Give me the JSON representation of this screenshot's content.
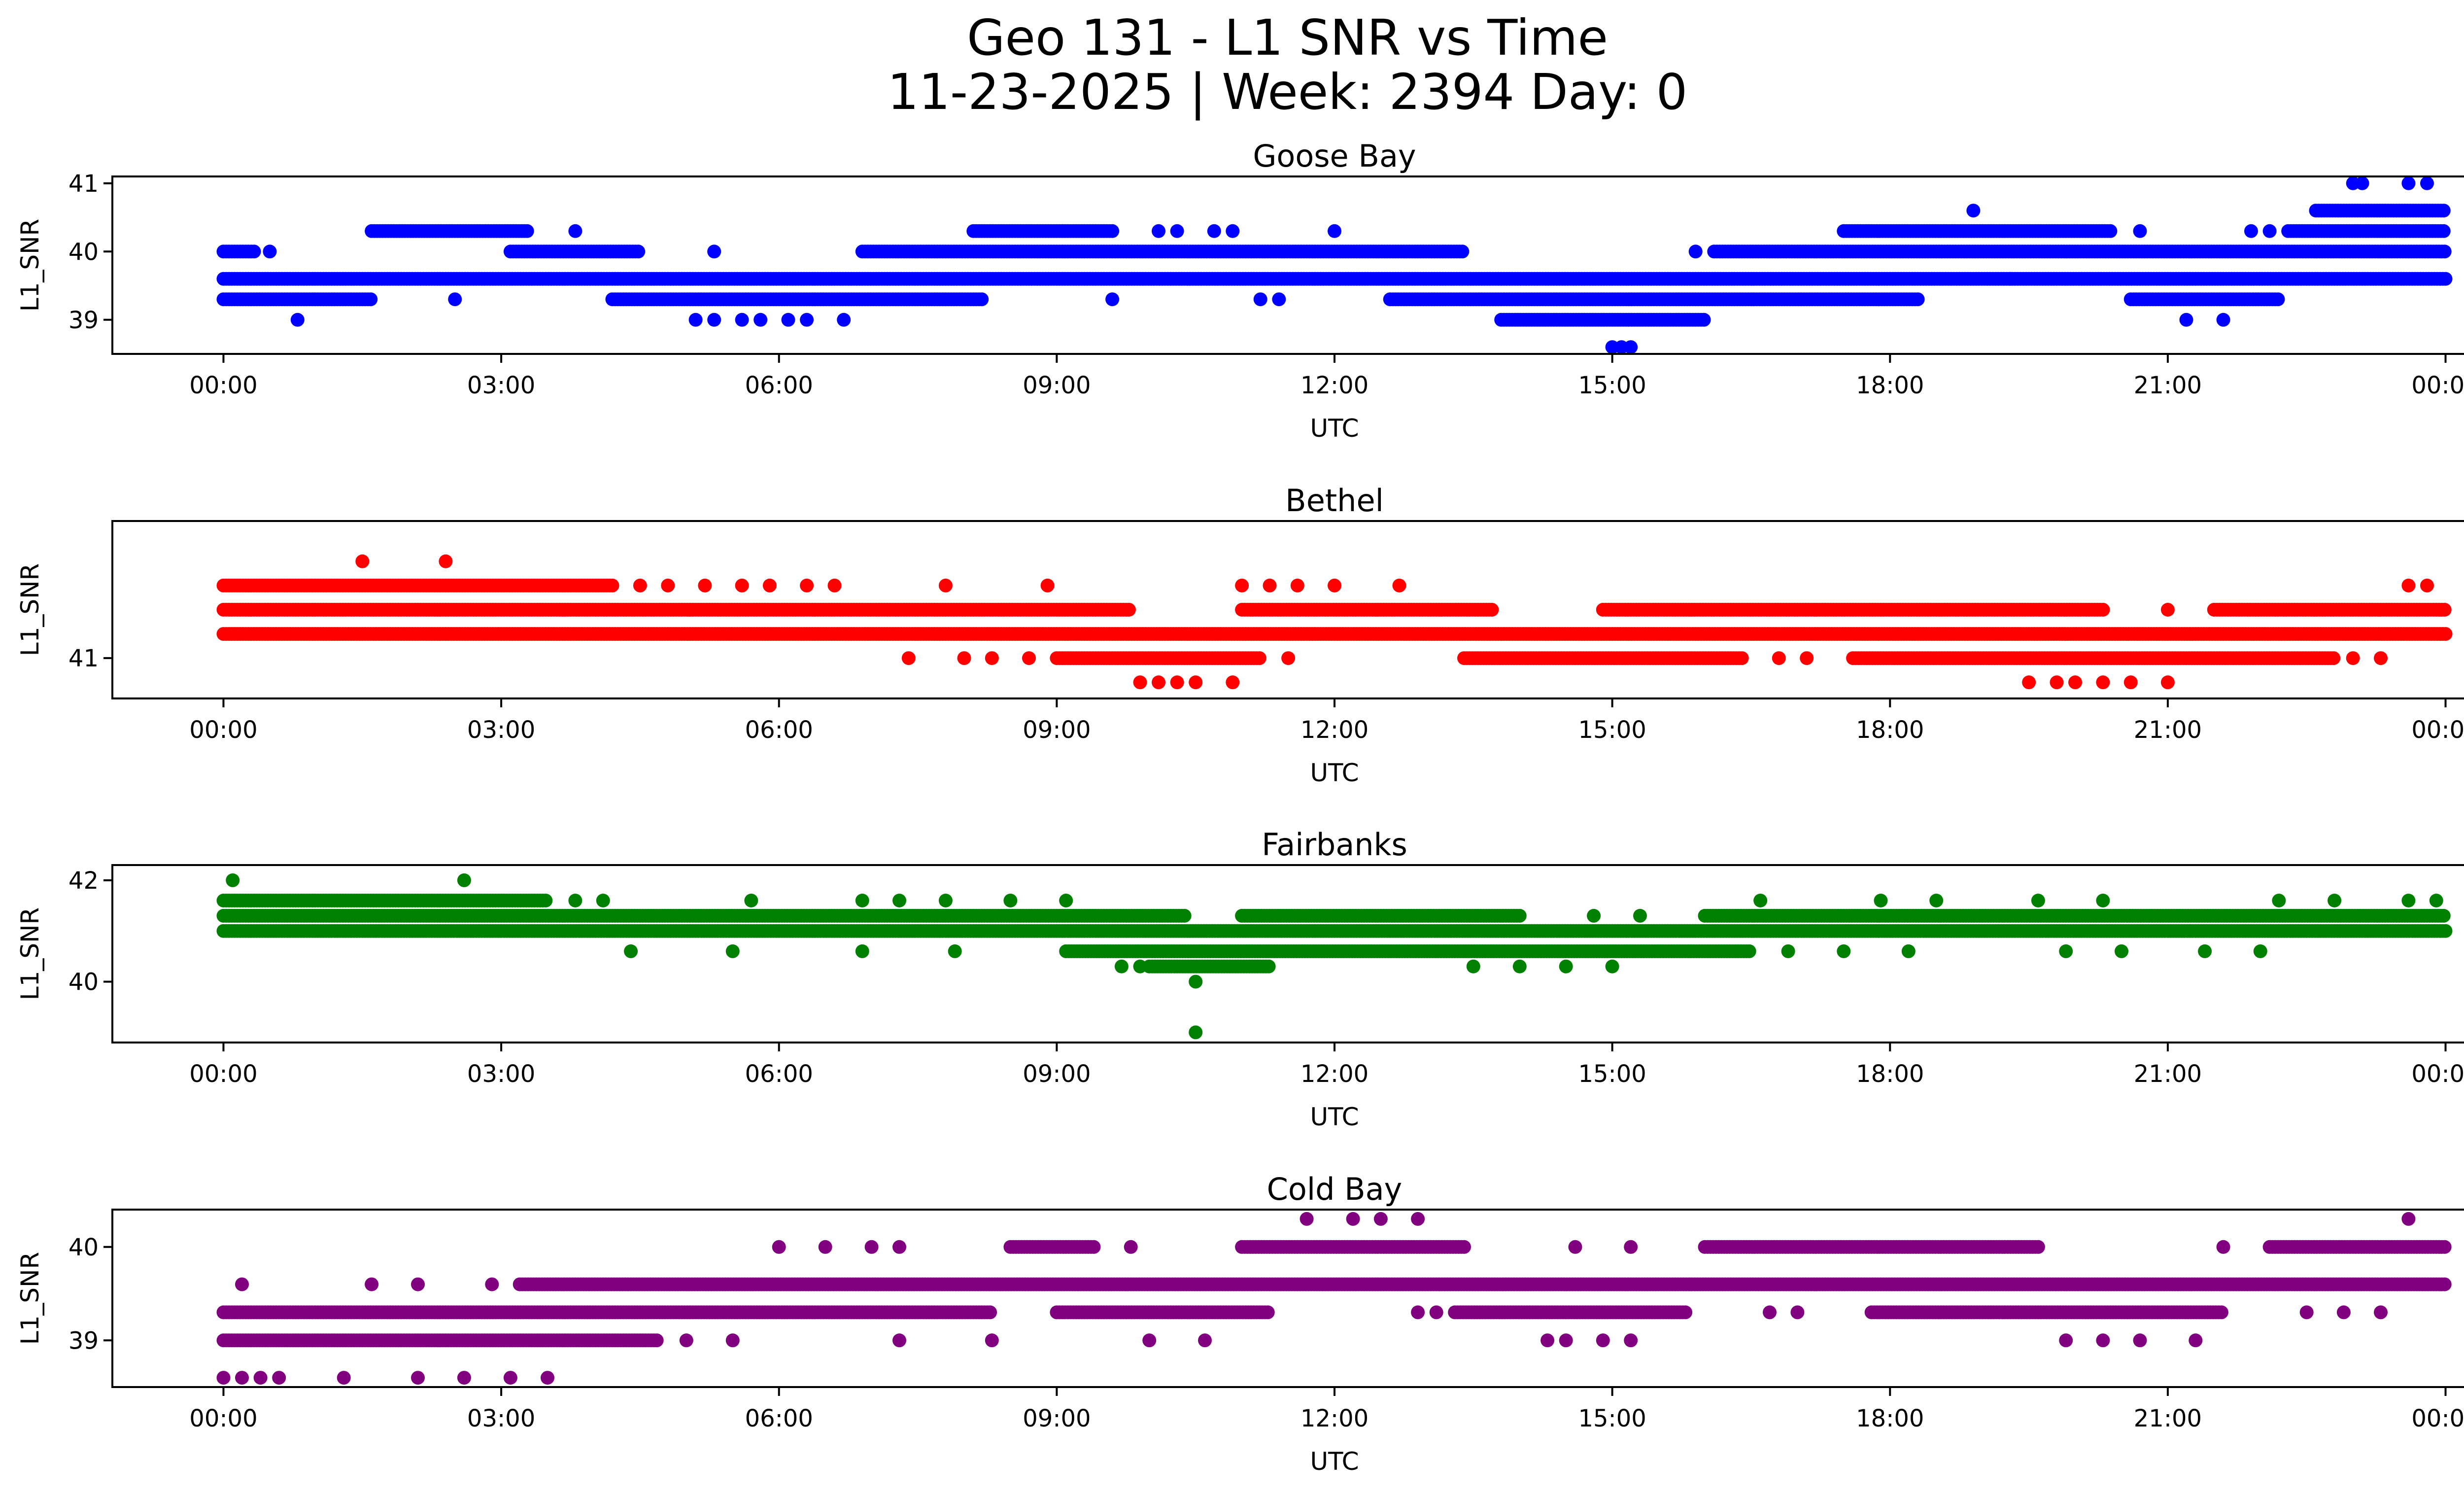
{
  "figure": {
    "title_line1": "Geo 131 - L1 SNR vs Time",
    "title_line2": "11-23-2025 | Week: 2394 Day: 0"
  },
  "chart_data": [
    {
      "type": "scatter",
      "title": "Goose Bay",
      "xlabel": "UTC",
      "ylabel": "L1_SNR",
      "color": "#0000ff",
      "xlim": [
        -1.2,
        25.2
      ],
      "ylim": [
        38.5,
        41.1
      ],
      "xticks": [
        0,
        3,
        6,
        9,
        12,
        15,
        18,
        21,
        24
      ],
      "xtick_labels": [
        "00:00",
        "03:00",
        "06:00",
        "09:00",
        "12:00",
        "15:00",
        "18:00",
        "21:00",
        "00:00"
      ],
      "yticks": [
        39,
        40,
        41
      ],
      "ytick_labels": [
        "39",
        "40",
        "41"
      ],
      "bands": [
        {
          "y": 39.6,
          "ranges": [
            [
              0.0,
              24.0
            ]
          ]
        },
        {
          "y": 39.3,
          "ranges": [
            [
              0.0,
              1.6
            ],
            [
              4.2,
              8.2
            ],
            [
              12.6,
              18.3
            ],
            [
              20.6,
              22.2
            ]
          ]
        },
        {
          "y": 40.0,
          "ranges": [
            [
              0.0,
              0.35
            ],
            [
              3.1,
              4.5
            ],
            [
              6.9,
              13.4
            ],
            [
              16.1,
              24.0
            ]
          ]
        },
        {
          "y": 39.0,
          "ranges": [
            [
              13.8,
              16.0
            ]
          ]
        },
        {
          "y": 40.3,
          "ranges": [
            [
              1.6,
              3.3
            ],
            [
              8.1,
              9.6
            ],
            [
              17.5,
              20.4
            ],
            [
              22.3,
              24.0
            ]
          ]
        },
        {
          "y": 40.6,
          "ranges": [
            [
              22.6,
              24.0
            ]
          ]
        }
      ],
      "points": [
        [
          0.8,
          39.0
        ],
        [
          0.5,
          40.0
        ],
        [
          2.5,
          39.3
        ],
        [
          3.8,
          40.3
        ],
        [
          5.3,
          40.0
        ],
        [
          5.1,
          39.0
        ],
        [
          5.3,
          39.0
        ],
        [
          5.6,
          39.0
        ],
        [
          5.8,
          39.0
        ],
        [
          6.1,
          39.0
        ],
        [
          6.3,
          39.0
        ],
        [
          6.7,
          39.0
        ],
        [
          9.6,
          39.3
        ],
        [
          10.1,
          40.3
        ],
        [
          10.3,
          40.3
        ],
        [
          10.7,
          40.3
        ],
        [
          10.9,
          40.3
        ],
        [
          11.2,
          39.3
        ],
        [
          11.4,
          39.3
        ],
        [
          12.0,
          40.3
        ],
        [
          15.9,
          40.0
        ],
        [
          15.0,
          38.6
        ],
        [
          15.1,
          38.6
        ],
        [
          15.2,
          38.6
        ],
        [
          18.9,
          40.6
        ],
        [
          19.3,
          39.6
        ],
        [
          20.7,
          40.3
        ],
        [
          21.2,
          39.0
        ],
        [
          21.9,
          40.3
        ],
        [
          22.1,
          40.3
        ],
        [
          21.6,
          39.0
        ],
        [
          23.0,
          41.0
        ],
        [
          23.1,
          41.0
        ],
        [
          23.6,
          41.0
        ],
        [
          23.8,
          41.0
        ]
      ]
    },
    {
      "type": "scatter",
      "title": "Bethel",
      "xlabel": "UTC",
      "ylabel": "L1_SNR",
      "color": "#ff0000",
      "xlim": [
        -1.2,
        25.2
      ],
      "ylim": [
        40.75,
        41.85
      ],
      "xticks": [
        0,
        3,
        6,
        9,
        12,
        15,
        18,
        21,
        24
      ],
      "xtick_labels": [
        "00:00",
        "03:00",
        "06:00",
        "09:00",
        "12:00",
        "15:00",
        "18:00",
        "21:00",
        "00:00"
      ],
      "yticks": [
        41
      ],
      "ytick_labels": [
        "41"
      ],
      "bands": [
        {
          "y": 41.3,
          "ranges": [
            [
              0.0,
              9.8
            ],
            [
              11.0,
              13.7
            ],
            [
              14.9,
              20.3
            ],
            [
              21.5,
              24.0
            ]
          ]
        },
        {
          "y": 41.15,
          "ranges": [
            [
              0.0,
              24.0
            ]
          ]
        },
        {
          "y": 41.45,
          "ranges": [
            [
              0.0,
              4.2
            ]
          ]
        },
        {
          "y": 41.0,
          "ranges": [
            [
              9.0,
              11.2
            ],
            [
              13.4,
              16.4
            ],
            [
              17.6,
              22.8
            ]
          ]
        }
      ],
      "points": [
        [
          1.5,
          41.6
        ],
        [
          2.4,
          41.6
        ],
        [
          4.5,
          41.45
        ],
        [
          4.8,
          41.45
        ],
        [
          5.2,
          41.45
        ],
        [
          5.6,
          41.45
        ],
        [
          5.9,
          41.45
        ],
        [
          6.3,
          41.45
        ],
        [
          6.6,
          41.45
        ],
        [
          7.8,
          41.45
        ],
        [
          8.9,
          41.45
        ],
        [
          7.4,
          41.0
        ],
        [
          8.0,
          41.0
        ],
        [
          8.3,
          41.0
        ],
        [
          8.7,
          41.0
        ],
        [
          11.0,
          41.45
        ],
        [
          11.3,
          41.45
        ],
        [
          11.6,
          41.45
        ],
        [
          12.0,
          41.45
        ],
        [
          12.7,
          41.45
        ],
        [
          11.5,
          41.0
        ],
        [
          9.9,
          40.85
        ],
        [
          10.1,
          40.85
        ],
        [
          10.3,
          40.85
        ],
        [
          10.5,
          40.85
        ],
        [
          10.9,
          40.85
        ],
        [
          16.8,
          41.0
        ],
        [
          17.1,
          41.0
        ],
        [
          19.5,
          40.85
        ],
        [
          19.8,
          40.85
        ],
        [
          20.0,
          40.85
        ],
        [
          20.3,
          40.85
        ],
        [
          20.6,
          40.85
        ],
        [
          21.0,
          40.85
        ],
        [
          21.0,
          41.3
        ],
        [
          23.6,
          41.45
        ],
        [
          23.8,
          41.45
        ],
        [
          23.0,
          41.0
        ],
        [
          23.3,
          41.0
        ]
      ]
    },
    {
      "type": "scatter",
      "title": "Fairbanks",
      "xlabel": "UTC",
      "ylabel": "L1_SNR",
      "color": "#008000",
      "xlim": [
        -1.2,
        25.2
      ],
      "ylim": [
        38.8,
        42.3
      ],
      "xticks": [
        0,
        3,
        6,
        9,
        12,
        15,
        18,
        21,
        24
      ],
      "xtick_labels": [
        "00:00",
        "03:00",
        "06:00",
        "09:00",
        "12:00",
        "15:00",
        "18:00",
        "21:00",
        "00:00"
      ],
      "yticks": [
        40,
        42
      ],
      "ytick_labels": [
        "40",
        "42"
      ],
      "bands": [
        {
          "y": 41.3,
          "ranges": [
            [
              0.0,
              10.4
            ],
            [
              11.0,
              14.0
            ],
            [
              16.0,
              24.0
            ]
          ]
        },
        {
          "y": 41.0,
          "ranges": [
            [
              0.0,
              24.0
            ]
          ]
        },
        {
          "y": 41.6,
          "ranges": [
            [
              0.0,
              3.5
            ]
          ]
        },
        {
          "y": 40.6,
          "ranges": [
            [
              9.1,
              16.5
            ]
          ]
        },
        {
          "y": 40.3,
          "ranges": [
            [
              10.0,
              11.3
            ]
          ]
        }
      ],
      "points": [
        [
          0.1,
          42.0
        ],
        [
          2.6,
          42.0
        ],
        [
          10.5,
          40.0
        ],
        [
          10.5,
          39.0
        ],
        [
          4.4,
          40.6
        ],
        [
          5.5,
          40.6
        ],
        [
          6.9,
          40.6
        ],
        [
          7.9,
          40.6
        ],
        [
          3.8,
          41.6
        ],
        [
          4.1,
          41.6
        ],
        [
          5.7,
          41.6
        ],
        [
          6.9,
          41.6
        ],
        [
          7.3,
          41.6
        ],
        [
          7.8,
          41.6
        ],
        [
          8.5,
          41.6
        ],
        [
          9.1,
          41.6
        ],
        [
          9.7,
          40.3
        ],
        [
          9.9,
          40.3
        ],
        [
          13.5,
          40.3
        ],
        [
          14.0,
          40.3
        ],
        [
          14.5,
          40.3
        ],
        [
          15.0,
          40.3
        ],
        [
          14.8,
          41.3
        ],
        [
          15.3,
          41.3
        ],
        [
          16.9,
          40.6
        ],
        [
          17.5,
          40.6
        ],
        [
          18.2,
          40.6
        ],
        [
          19.9,
          40.6
        ],
        [
          20.5,
          40.6
        ],
        [
          21.4,
          40.6
        ],
        [
          22.0,
          40.6
        ],
        [
          17.9,
          41.6
        ],
        [
          18.5,
          41.6
        ],
        [
          19.6,
          41.6
        ],
        [
          20.3,
          41.6
        ],
        [
          22.2,
          41.6
        ],
        [
          22.8,
          41.6
        ],
        [
          23.6,
          41.6
        ],
        [
          23.9,
          41.6
        ],
        [
          16.6,
          41.6
        ]
      ]
    },
    {
      "type": "scatter",
      "title": "Cold Bay",
      "xlabel": "UTC",
      "ylabel": "L1_SNR",
      "color": "#800080",
      "xlim": [
        -1.2,
        25.2
      ],
      "ylim": [
        38.5,
        40.4
      ],
      "xticks": [
        0,
        3,
        6,
        9,
        12,
        15,
        18,
        21,
        24
      ],
      "xtick_labels": [
        "00:00",
        "03:00",
        "06:00",
        "09:00",
        "12:00",
        "15:00",
        "18:00",
        "21:00",
        "00:00"
      ],
      "yticks": [
        39,
        40
      ],
      "ytick_labels": [
        "39",
        "40"
      ],
      "bands": [
        {
          "y": 39.6,
          "ranges": [
            [
              3.2,
              24.0
            ]
          ]
        },
        {
          "y": 39.3,
          "ranges": [
            [
              0.0,
              8.3
            ],
            [
              9.0,
              11.3
            ],
            [
              13.3,
              15.8
            ],
            [
              17.8,
              21.6
            ]
          ]
        },
        {
          "y": 39.0,
          "ranges": [
            [
              0.0,
              4.7
            ]
          ]
        },
        {
          "y": 40.0,
          "ranges": [
            [
              8.5,
              9.4
            ],
            [
              11.0,
              13.4
            ],
            [
              16.0,
              19.6
            ],
            [
              22.1,
              24.0
            ]
          ]
        }
      ],
      "points": [
        [
          0.0,
          38.6
        ],
        [
          0.2,
          38.6
        ],
        [
          0.4,
          38.6
        ],
        [
          0.6,
          38.6
        ],
        [
          1.3,
          38.6
        ],
        [
          2.1,
          38.6
        ],
        [
          2.6,
          38.6
        ],
        [
          3.1,
          38.6
        ],
        [
          3.5,
          38.6
        ],
        [
          0.2,
          39.6
        ],
        [
          1.6,
          39.6
        ],
        [
          2.1,
          39.6
        ],
        [
          2.9,
          39.6
        ],
        [
          5.0,
          39.0
        ],
        [
          5.5,
          39.0
        ],
        [
          7.3,
          39.0
        ],
        [
          8.3,
          39.0
        ],
        [
          6.0,
          40.0
        ],
        [
          6.5,
          40.0
        ],
        [
          7.3,
          40.0
        ],
        [
          7.0,
          40.0
        ],
        [
          9.8,
          40.0
        ],
        [
          10.0,
          39.0
        ],
        [
          10.6,
          39.0
        ],
        [
          11.7,
          40.3
        ],
        [
          12.2,
          40.3
        ],
        [
          12.5,
          40.3
        ],
        [
          12.9,
          40.3
        ],
        [
          12.9,
          39.3
        ],
        [
          13.1,
          39.3
        ],
        [
          14.3,
          39.0
        ],
        [
          14.5,
          39.0
        ],
        [
          14.9,
          39.0
        ],
        [
          15.2,
          39.0
        ],
        [
          14.6,
          40.0
        ],
        [
          15.2,
          40.0
        ],
        [
          16.7,
          39.3
        ],
        [
          17.0,
          39.3
        ],
        [
          19.9,
          39.0
        ],
        [
          20.3,
          39.0
        ],
        [
          20.7,
          39.0
        ],
        [
          21.3,
          39.0
        ],
        [
          21.6,
          40.0
        ],
        [
          23.6,
          40.3
        ],
        [
          22.5,
          39.3
        ],
        [
          22.9,
          39.3
        ],
        [
          23.3,
          39.3
        ]
      ]
    }
  ]
}
